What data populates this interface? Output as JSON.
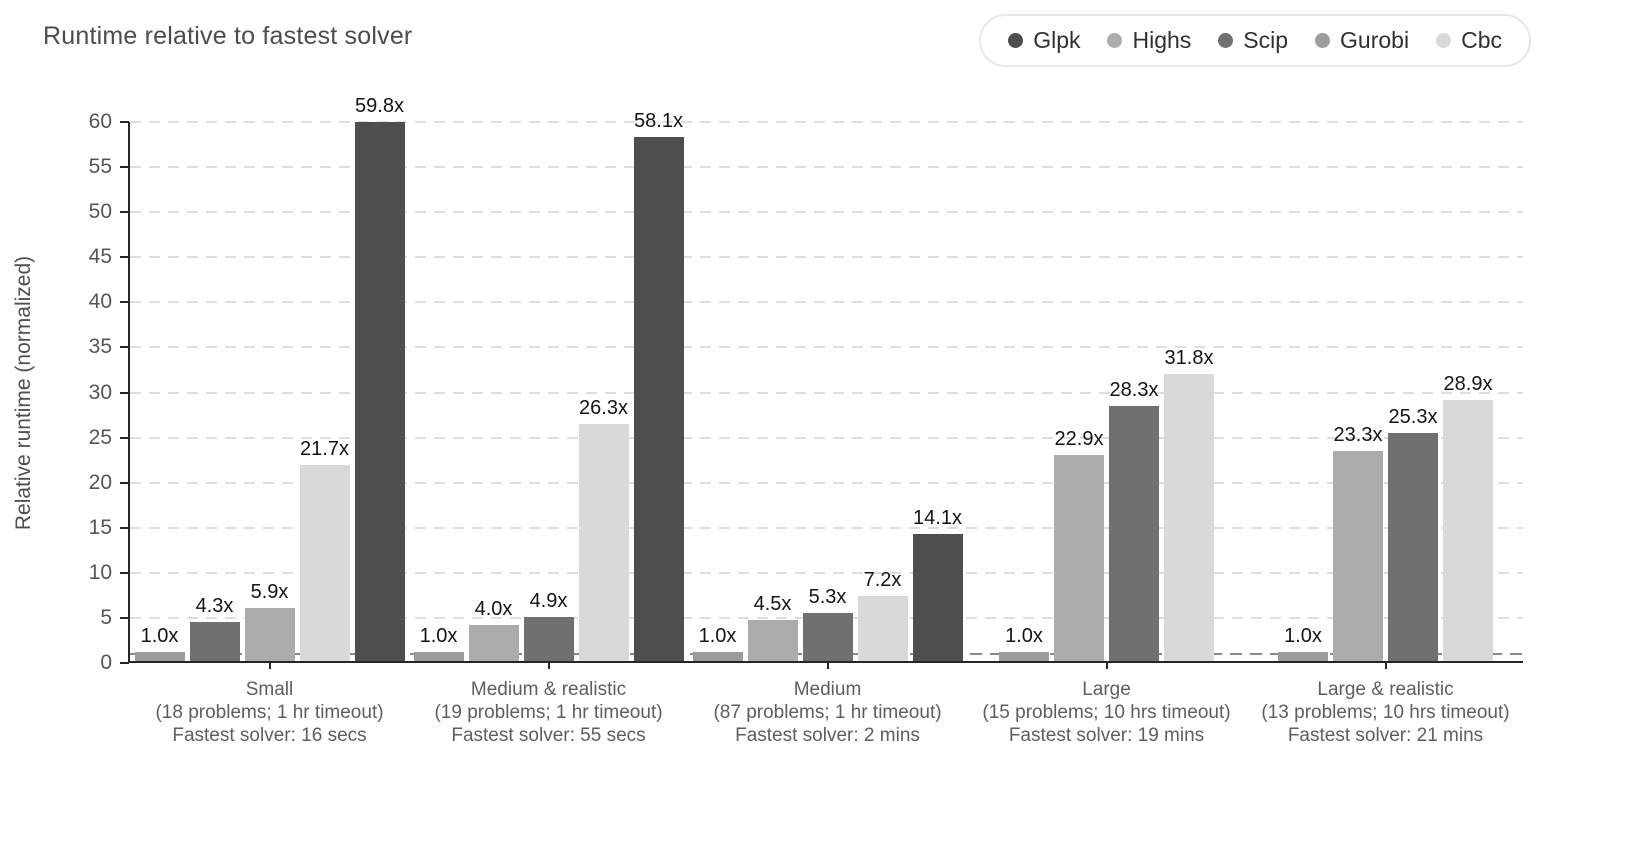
{
  "title": "Runtime relative to fastest solver",
  "legend": {
    "items": [
      {
        "label": "Glpk",
        "color": "#4e4e4e"
      },
      {
        "label": "Highs",
        "color": "#acacac"
      },
      {
        "label": "Scip",
        "color": "#707070"
      },
      {
        "label": "Gurobi",
        "color": "#9c9c9c"
      },
      {
        "label": "Cbc",
        "color": "#d9d9d9"
      }
    ]
  },
  "chart_data": {
    "type": "bar",
    "title": "Runtime relative to fastest solver",
    "ylabel": "Relative runtime (normalized)",
    "ylim": [
      0,
      60
    ],
    "y_ticks": [
      0,
      5,
      10,
      15,
      20,
      25,
      30,
      35,
      40,
      45,
      50,
      55,
      60
    ],
    "grid": "horizontal-dashed",
    "reference_line": {
      "value": 1,
      "style": "dashed"
    },
    "legend_position": "top-right",
    "unit_suffix": "x",
    "series": [
      "Glpk",
      "Highs",
      "Scip",
      "Gurobi",
      "Cbc"
    ],
    "groups": [
      {
        "category": "Small",
        "subtitle": "(18 problems; 1 hr timeout)",
        "fastest": "Fastest solver: 16 secs",
        "bars": [
          {
            "solver": "Gurobi",
            "value": 1.0,
            "label": "1.0x"
          },
          {
            "solver": "Scip",
            "value": 4.3,
            "label": "4.3x"
          },
          {
            "solver": "Highs",
            "value": 5.9,
            "label": "5.9x"
          },
          {
            "solver": "Cbc",
            "value": 21.7,
            "label": "21.7x"
          },
          {
            "solver": "Glpk",
            "value": 59.8,
            "label": "59.8x"
          }
        ]
      },
      {
        "category": "Medium & realistic",
        "subtitle": "(19 problems; 1 hr timeout)",
        "fastest": "Fastest solver: 55 secs",
        "bars": [
          {
            "solver": "Gurobi",
            "value": 1.0,
            "label": "1.0x"
          },
          {
            "solver": "Highs",
            "value": 4.0,
            "label": "4.0x"
          },
          {
            "solver": "Scip",
            "value": 4.9,
            "label": "4.9x"
          },
          {
            "solver": "Cbc",
            "value": 26.3,
            "label": "26.3x"
          },
          {
            "solver": "Glpk",
            "value": 58.1,
            "label": "58.1x"
          }
        ]
      },
      {
        "category": "Medium",
        "subtitle": "(87 problems; 1 hr timeout)",
        "fastest": "Fastest solver: 2 mins",
        "bars": [
          {
            "solver": "Gurobi",
            "value": 1.0,
            "label": "1.0x"
          },
          {
            "solver": "Highs",
            "value": 4.5,
            "label": "4.5x"
          },
          {
            "solver": "Scip",
            "value": 5.3,
            "label": "5.3x"
          },
          {
            "solver": "Cbc",
            "value": 7.2,
            "label": "7.2x"
          },
          {
            "solver": "Glpk",
            "value": 14.1,
            "label": "14.1x"
          }
        ]
      },
      {
        "category": "Large",
        "subtitle": "(15 problems; 10 hrs timeout)",
        "fastest": "Fastest solver: 19 mins",
        "bars": [
          {
            "solver": "Gurobi",
            "value": 1.0,
            "label": "1.0x"
          },
          {
            "solver": "Highs",
            "value": 22.9,
            "label": "22.9x"
          },
          {
            "solver": "Scip",
            "value": 28.3,
            "label": "28.3x"
          },
          {
            "solver": "Cbc",
            "value": 31.8,
            "label": "31.8x"
          }
        ]
      },
      {
        "category": "Large & realistic",
        "subtitle": "(13 problems; 10 hrs timeout)",
        "fastest": "Fastest solver: 21 mins",
        "bars": [
          {
            "solver": "Gurobi",
            "value": 1.0,
            "label": "1.0x"
          },
          {
            "solver": "Highs",
            "value": 23.3,
            "label": "23.3x"
          },
          {
            "solver": "Scip",
            "value": 25.3,
            "label": "25.3x"
          },
          {
            "solver": "Cbc",
            "value": 28.9,
            "label": "28.9x"
          }
        ]
      }
    ]
  }
}
